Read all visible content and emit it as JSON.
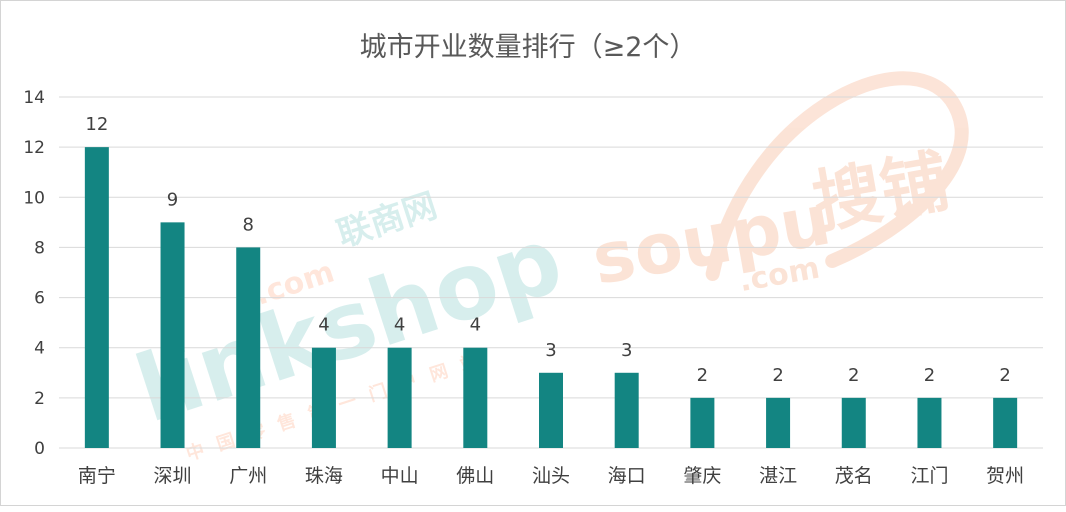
{
  "chart_data": {
    "type": "bar",
    "title": "城市开业数量排行（≥2个）",
    "categories": [
      "南宁",
      "深圳",
      "广州",
      "珠海",
      "中山",
      "佛山",
      "汕头",
      "海口",
      "肇庆",
      "湛江",
      "茂名",
      "江门",
      "贺州"
    ],
    "values": [
      12,
      9,
      8,
      4,
      4,
      4,
      3,
      3,
      2,
      2,
      2,
      2,
      2
    ],
    "ylim": [
      0,
      14
    ],
    "yticks": [
      0,
      2,
      4,
      6,
      8,
      10,
      12,
      14
    ],
    "grid": true,
    "data_labels": true,
    "bar_color": "#138582",
    "grid_color": "#d9d9d9"
  },
  "watermarks": {
    "left": {
      "brand": "linkshop",
      "dot_com": ".com",
      "cn": "联商网",
      "sub": "中国零售第一门户网站"
    },
    "right": {
      "brand": "soupu",
      "dot_com": ".com",
      "cn": "搜铺"
    }
  }
}
